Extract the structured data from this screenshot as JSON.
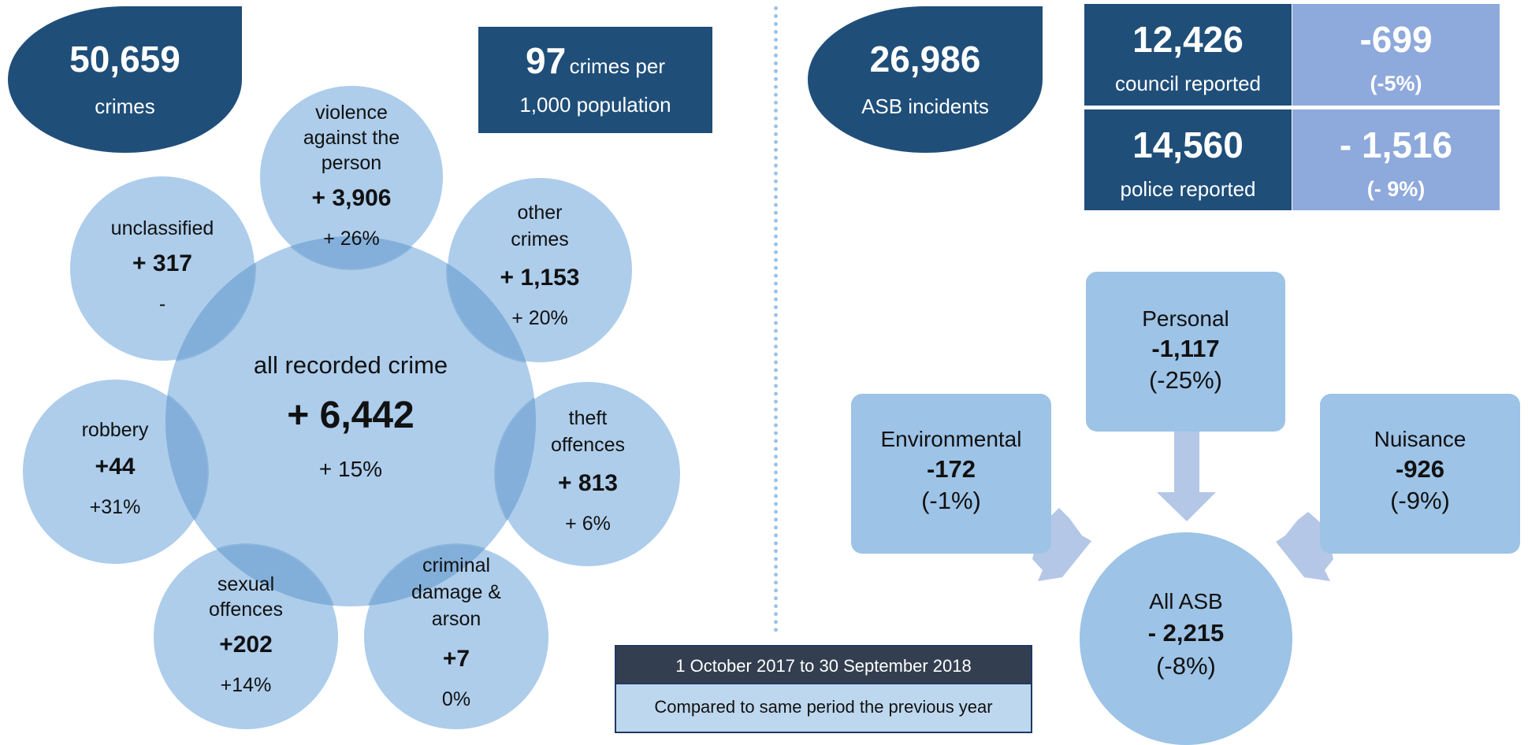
{
  "crimes": {
    "total": "50,659",
    "label": "crimes"
  },
  "rate": {
    "value": "97",
    "unit": "crimes per",
    "unit2": "1,000 population"
  },
  "all_crime": {
    "label": "all recorded crime",
    "change": "+ 6,442",
    "pct": "+ 15%"
  },
  "categories": {
    "violence": {
      "line1": "violence",
      "line2": "against the",
      "line3": "person",
      "change": "+ 3,906",
      "pct": "+ 26%"
    },
    "other": {
      "line1": "other",
      "line2": "crimes",
      "change": "+ 1,153",
      "pct": "+ 20%"
    },
    "theft": {
      "line1": "theft",
      "line2": "offences",
      "change": "+ 813",
      "pct": "+ 6%"
    },
    "damage": {
      "line1": "criminal",
      "line2": "damage &",
      "line3": "arson",
      "change": "+7",
      "pct": "0%"
    },
    "sexual": {
      "line1": "sexual",
      "line2": "offences",
      "change": "+202",
      "pct": "+14%"
    },
    "robbery": {
      "line1": "robbery",
      "change": "+44",
      "pct": "+31%"
    },
    "unclassified": {
      "line1": "unclassified",
      "change": "+ 317",
      "pct": "-"
    }
  },
  "asb": {
    "total": "26,986",
    "label": "ASB incidents"
  },
  "council": {
    "value": "12,426",
    "label": "council reported",
    "change": "-699",
    "pct": "(-5%)"
  },
  "police": {
    "value": "14,560",
    "label": "police reported",
    "change": "- 1,516",
    "pct": "(- 9%)"
  },
  "asb_types": {
    "personal": {
      "label": "Personal",
      "change": "-1,117",
      "pct": "(-25%)"
    },
    "environmental": {
      "label": "Environmental",
      "change": "-172",
      "pct": "(-1%)"
    },
    "nuisance": {
      "label": "Nuisance",
      "change": "-926",
      "pct": "(-9%)"
    },
    "all": {
      "label": "All ASB",
      "change": "- 2,215",
      "pct": "(-8%)"
    }
  },
  "period": {
    "dates": "1 October 2017 to 30 September 2018",
    "compare": "Compared to same period the previous year"
  },
  "colors": {
    "dark_blue": "#1f4e79",
    "light_blue": "#9dc3e6",
    "periwinkle": "#8ea9db",
    "arrow": "#b4c7e7"
  }
}
